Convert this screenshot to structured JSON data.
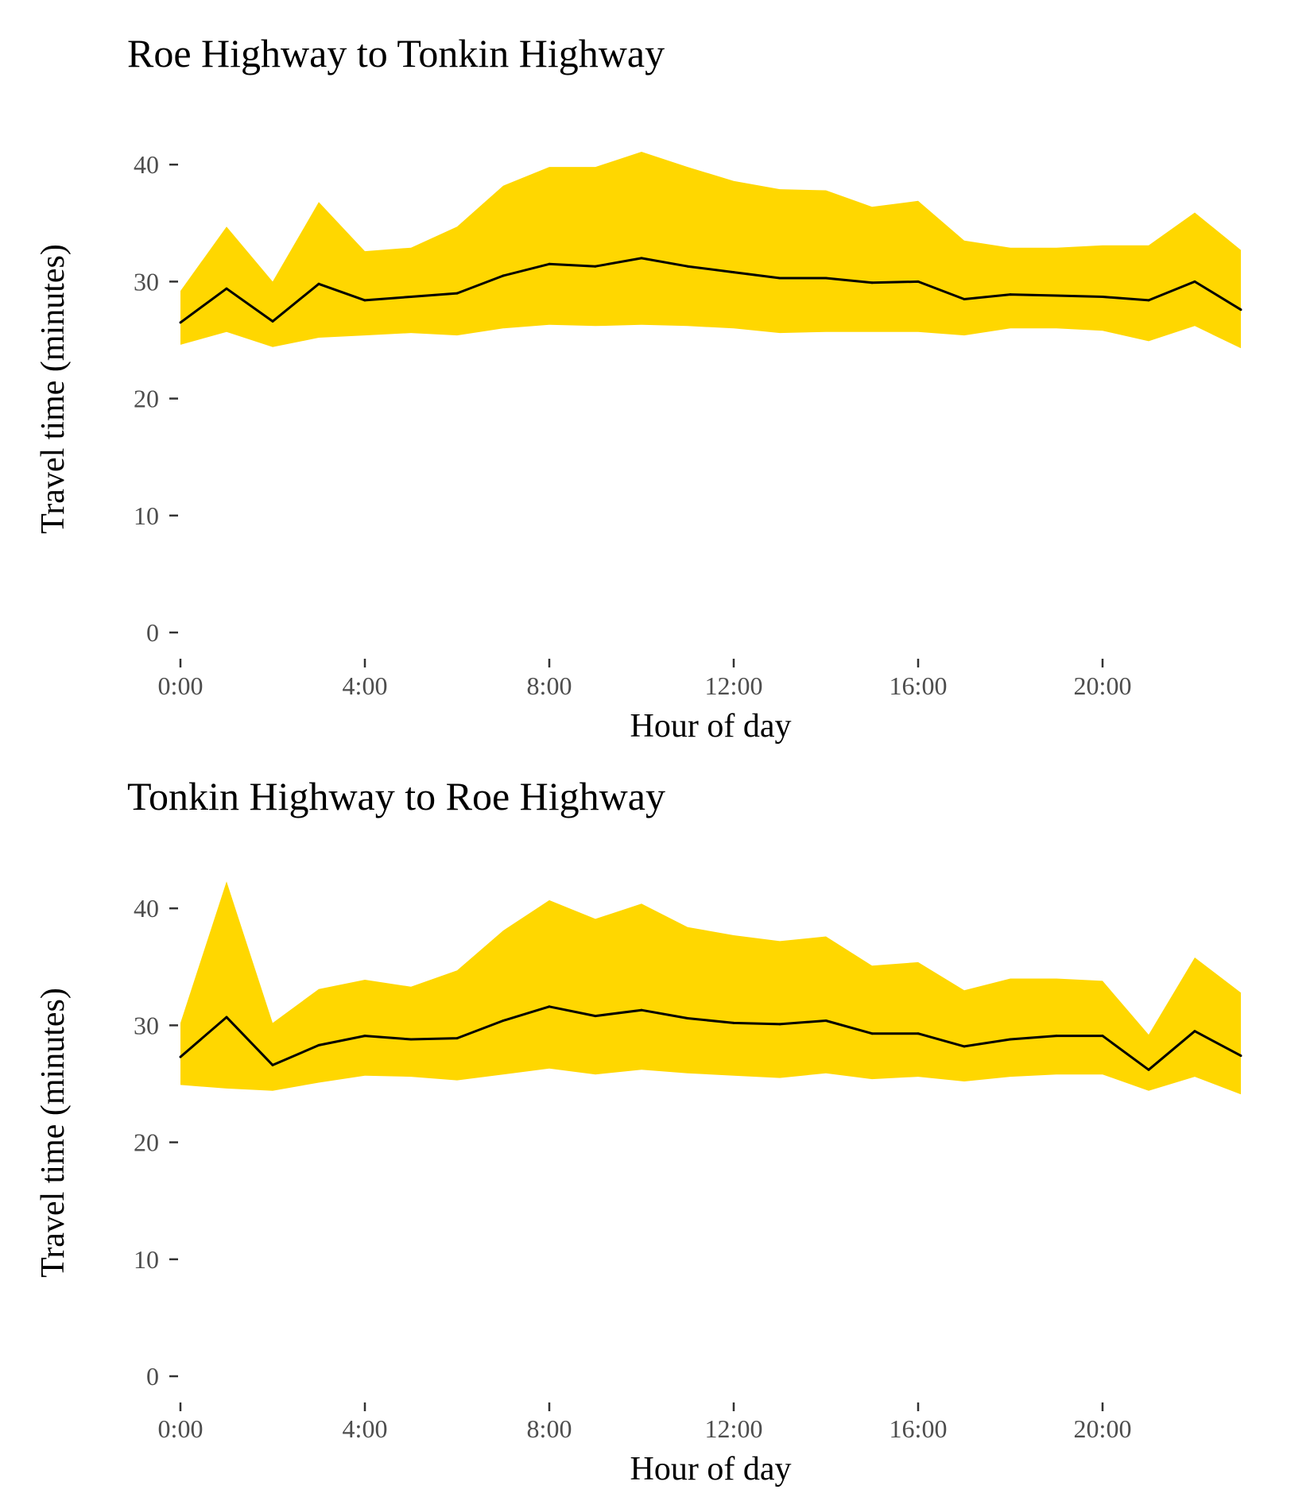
{
  "chart_data": [
    {
      "type": "area",
      "title": "Roe Highway to Tonkin Highway",
      "xlabel": "Hour of day",
      "ylabel": "Travel time (minutes)",
      "x": [
        0,
        1,
        2,
        3,
        4,
        5,
        6,
        7,
        8,
        9,
        10,
        11,
        12,
        13,
        14,
        15,
        16,
        17,
        18,
        19,
        20,
        21,
        22,
        23
      ],
      "xticks": [
        {
          "value": 0,
          "label": "0:00"
        },
        {
          "value": 4,
          "label": "4:00"
        },
        {
          "value": 8,
          "label": "8:00"
        },
        {
          "value": 12,
          "label": "12:00"
        },
        {
          "value": 16,
          "label": "16:00"
        },
        {
          "value": 20,
          "label": "20:00"
        }
      ],
      "yticks": [
        {
          "value": 0,
          "label": "0"
        },
        {
          "value": 10,
          "label": "10"
        },
        {
          "value": 20,
          "label": "20"
        },
        {
          "value": 30,
          "label": "30"
        },
        {
          "value": 40,
          "label": "40"
        }
      ],
      "xlim": [
        0,
        23
      ],
      "ylim": [
        0,
        43
      ],
      "grid": false,
      "band_color": "#FFD700",
      "line_color": "#000000",
      "median": [
        26.5,
        29.4,
        26.6,
        29.8,
        28.4,
        28.7,
        29.0,
        30.5,
        31.5,
        31.3,
        32.0,
        31.3,
        30.8,
        30.3,
        30.3,
        29.9,
        30.0,
        28.5,
        28.9,
        28.8,
        28.7,
        28.4,
        30.0,
        27.6
      ],
      "lower": [
        24.6,
        25.7,
        24.4,
        25.2,
        25.4,
        25.6,
        25.4,
        26.0,
        26.3,
        26.2,
        26.3,
        26.2,
        26.0,
        25.6,
        25.7,
        25.7,
        25.7,
        25.4,
        26.0,
        26.0,
        25.8,
        24.9,
        26.2,
        24.3
      ],
      "upper": [
        29.2,
        34.7,
        30.0,
        36.8,
        32.6,
        32.9,
        34.7,
        38.2,
        39.8,
        39.8,
        41.1,
        39.8,
        38.6,
        37.9,
        37.8,
        36.4,
        36.9,
        33.5,
        32.9,
        32.9,
        33.1,
        33.1,
        35.9,
        32.7
      ]
    },
    {
      "type": "area",
      "title": "Tonkin Highway to Roe Highway",
      "xlabel": "Hour of day",
      "ylabel": "Travel time (minutes)",
      "x": [
        0,
        1,
        2,
        3,
        4,
        5,
        6,
        7,
        8,
        9,
        10,
        11,
        12,
        13,
        14,
        15,
        16,
        17,
        18,
        19,
        20,
        21,
        22,
        23
      ],
      "xticks": [
        {
          "value": 0,
          "label": "0:00"
        },
        {
          "value": 4,
          "label": "4:00"
        },
        {
          "value": 8,
          "label": "8:00"
        },
        {
          "value": 12,
          "label": "12:00"
        },
        {
          "value": 16,
          "label": "16:00"
        },
        {
          "value": 20,
          "label": "20:00"
        }
      ],
      "yticks": [
        {
          "value": 0,
          "label": "0"
        },
        {
          "value": 10,
          "label": "10"
        },
        {
          "value": 20,
          "label": "20"
        },
        {
          "value": 30,
          "label": "30"
        },
        {
          "value": 40,
          "label": "40"
        }
      ],
      "xlim": [
        0,
        23
      ],
      "ylim": [
        0,
        43
      ],
      "grid": false,
      "band_color": "#FFD700",
      "line_color": "#000000",
      "median": [
        27.3,
        30.7,
        26.6,
        28.3,
        29.1,
        28.8,
        28.9,
        30.4,
        31.6,
        30.8,
        31.3,
        30.6,
        30.2,
        30.1,
        30.4,
        29.3,
        29.3,
        28.2,
        28.8,
        29.1,
        29.1,
        26.2,
        29.5,
        27.4
      ],
      "lower": [
        24.9,
        24.6,
        24.4,
        25.1,
        25.7,
        25.6,
        25.3,
        25.8,
        26.3,
        25.8,
        26.2,
        25.9,
        25.7,
        25.5,
        25.9,
        25.4,
        25.6,
        25.2,
        25.6,
        25.8,
        25.8,
        24.4,
        25.6,
        24.1
      ],
      "upper": [
        30.2,
        42.3,
        30.2,
        33.1,
        33.9,
        33.3,
        34.7,
        38.1,
        40.7,
        39.1,
        40.4,
        38.4,
        37.7,
        37.2,
        37.6,
        35.1,
        35.4,
        33.0,
        34.0,
        34.0,
        33.8,
        29.2,
        35.8,
        32.8
      ]
    }
  ]
}
